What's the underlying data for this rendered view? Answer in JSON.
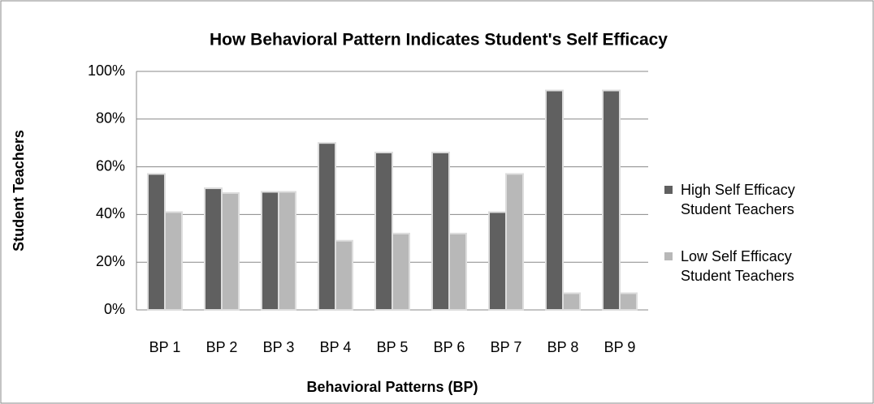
{
  "chart_data": {
    "type": "bar",
    "title": "How Behavioral Pattern Indicates Student's Self Efficacy",
    "x_label": "Behavioral Patterns (BP)",
    "y_label": "Student Teachers",
    "categories": [
      "BP 1",
      "BP 2",
      "BP 3",
      "BP 4",
      "BP 5",
      "BP 6",
      "BP 7",
      "BP 8",
      "BP 9"
    ],
    "series": [
      {
        "name": "High Self Efficacy Student Teachers",
        "color": "#606060",
        "values": [
          57,
          51,
          49.5,
          70,
          66,
          66,
          41,
          92,
          92
        ]
      },
      {
        "name": "Low Self Efficacy Student Teachers",
        "color": "#b8b8b8",
        "values": [
          41,
          49,
          49.5,
          29,
          32,
          32,
          57,
          7,
          7
        ]
      }
    ],
    "ylim": [
      0,
      100
    ],
    "yticks": [
      {
        "value": 0,
        "label": "0%"
      },
      {
        "value": 20,
        "label": "20%"
      },
      {
        "value": 40,
        "label": "40%"
      },
      {
        "value": 60,
        "label": "60%"
      },
      {
        "value": 80,
        "label": "80%"
      },
      {
        "value": 100,
        "label": "100%"
      }
    ],
    "grid": true,
    "legend": "right"
  }
}
